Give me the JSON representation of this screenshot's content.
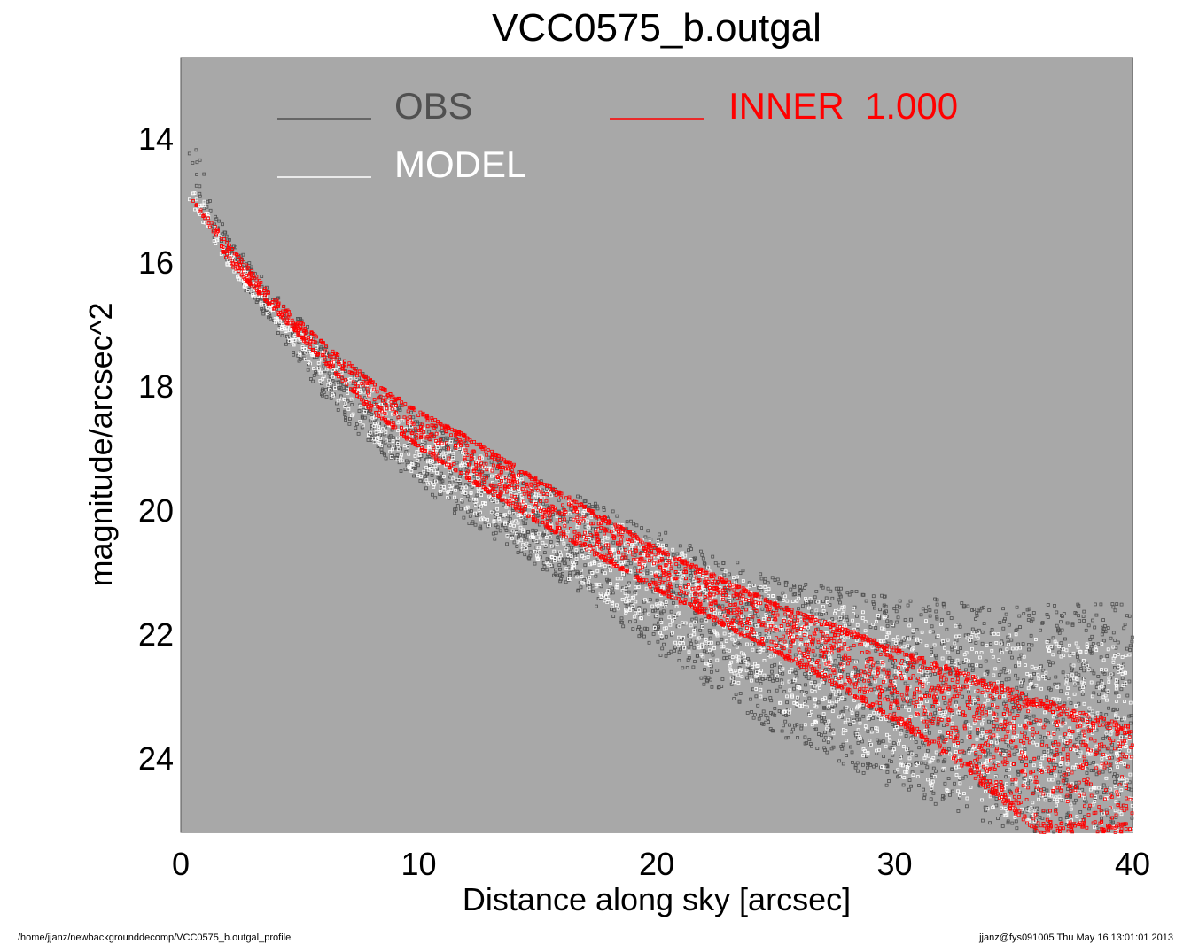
{
  "chart_data": {
    "type": "scatter",
    "title": "VCC0575_b.outgal",
    "xlabel": "Distance along sky [arcsec]",
    "ylabel": "magnitude/arcsec^2",
    "xlim": [
      0,
      40
    ],
    "ylim": [
      25.2,
      12.7
    ],
    "y_inverted": true,
    "x_ticks": [
      0,
      10,
      20,
      30,
      40
    ],
    "y_ticks": [
      14,
      16,
      18,
      20,
      22,
      24
    ],
    "grid": false,
    "background_color": "#a8a8a8",
    "legend_placement": "top",
    "legend": [
      {
        "label": "OBS",
        "color": "#505050"
      },
      {
        "label": "INNER  1.000",
        "color": "#ff0000"
      },
      {
        "label": "MODEL",
        "color": "#ffffff"
      }
    ],
    "series": [
      {
        "name": "OBS",
        "color": "#505050",
        "profile_upper": [
          [
            0.3,
            13.5
          ],
          [
            1,
            14.6
          ],
          [
            2,
            15.6
          ],
          [
            4,
            16.5
          ],
          [
            6,
            17.3
          ],
          [
            8,
            17.9
          ],
          [
            10,
            18.5
          ],
          [
            12,
            18.9
          ],
          [
            15,
            19.5
          ],
          [
            20,
            20.3
          ],
          [
            25,
            21.1
          ],
          [
            30,
            21.4
          ],
          [
            35,
            21.5
          ],
          [
            40,
            21.5
          ]
        ],
        "profile_lower": [
          [
            0.5,
            15.0
          ],
          [
            1,
            15.4
          ],
          [
            2,
            16.1
          ],
          [
            4,
            17.1
          ],
          [
            6,
            18.2
          ],
          [
            8,
            19.0
          ],
          [
            10,
            19.6
          ],
          [
            12,
            20.2
          ],
          [
            15,
            20.9
          ],
          [
            20,
            22.3
          ],
          [
            25,
            23.6
          ],
          [
            30,
            24.5
          ],
          [
            35,
            25.2
          ],
          [
            40,
            25.2
          ]
        ]
      },
      {
        "name": "MODEL",
        "color": "#ffffff",
        "profile_upper": [
          [
            0.3,
            14.8
          ],
          [
            1,
            15.0
          ],
          [
            2,
            15.8
          ],
          [
            4,
            16.7
          ],
          [
            6,
            17.4
          ],
          [
            8,
            18.0
          ],
          [
            10,
            18.6
          ],
          [
            12,
            19.0
          ],
          [
            15,
            19.6
          ],
          [
            20,
            20.5
          ],
          [
            25,
            21.3
          ],
          [
            30,
            21.7
          ],
          [
            35,
            22.0
          ],
          [
            40,
            22.2
          ]
        ],
        "profile_lower": [
          [
            0.5,
            15.1
          ],
          [
            1,
            15.4
          ],
          [
            2,
            16.1
          ],
          [
            4,
            17.0
          ],
          [
            6,
            18.0
          ],
          [
            8,
            18.9
          ],
          [
            10,
            19.5
          ],
          [
            12,
            20.0
          ],
          [
            15,
            20.8
          ],
          [
            20,
            22.0
          ],
          [
            25,
            23.2
          ],
          [
            30,
            24.3
          ],
          [
            35,
            25.0
          ],
          [
            40,
            25.2
          ]
        ]
      },
      {
        "name": "INNER  1.000",
        "color": "#ff0000",
        "profile_upper": [
          [
            0.5,
            15.0
          ],
          [
            1,
            15.2
          ],
          [
            2,
            15.7
          ],
          [
            4,
            16.6
          ],
          [
            6,
            17.3
          ],
          [
            8,
            17.9
          ],
          [
            10,
            18.4
          ],
          [
            12,
            18.8
          ],
          [
            15,
            19.5
          ],
          [
            20,
            20.6
          ],
          [
            25,
            21.5
          ],
          [
            30,
            22.2
          ],
          [
            35,
            22.9
          ],
          [
            40,
            23.5
          ]
        ],
        "profile_lower": [
          [
            0.5,
            15.0
          ],
          [
            1,
            15.3
          ],
          [
            2,
            16.0
          ],
          [
            4,
            16.8
          ],
          [
            6,
            17.6
          ],
          [
            8,
            18.4
          ],
          [
            10,
            19.0
          ],
          [
            12,
            19.5
          ],
          [
            15,
            20.2
          ],
          [
            20,
            21.3
          ],
          [
            25,
            22.3
          ],
          [
            30,
            23.4
          ],
          [
            33,
            24.2
          ],
          [
            36,
            25.2
          ]
        ]
      }
    ]
  },
  "footer": {
    "left": "/home/jjanz/newbackgrounddecomp/VCC0575_b.outgal_profile",
    "right": "jjanz@fys091005  Thu May 16 13:01:01 2013"
  }
}
